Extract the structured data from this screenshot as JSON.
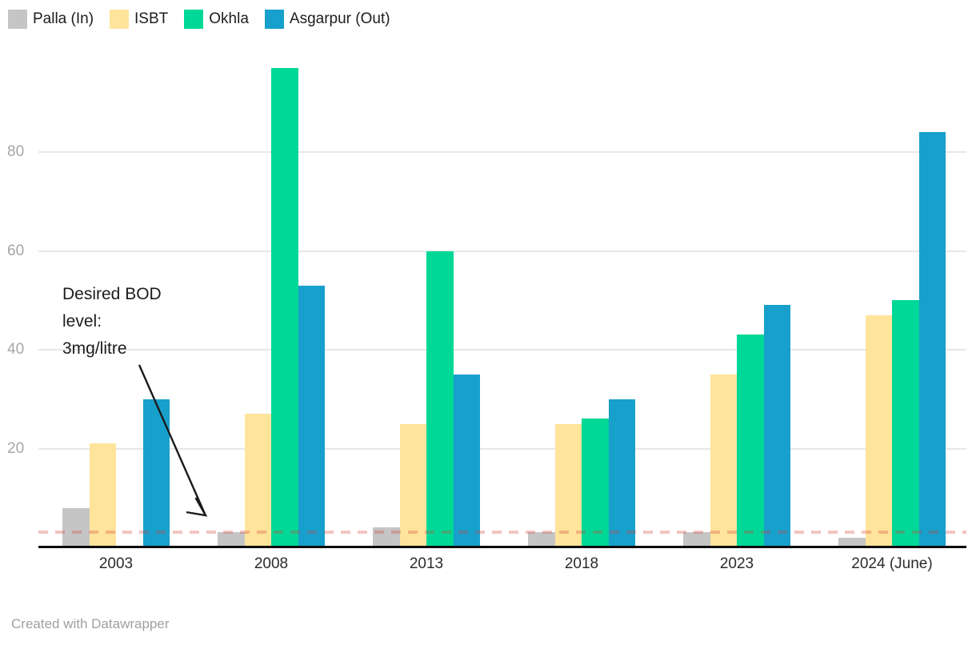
{
  "chart_data": {
    "type": "bar",
    "title": "",
    "categories": [
      "2003",
      "2008",
      "2013",
      "2018",
      "2023",
      "2024 (June)"
    ],
    "series": [
      {
        "name": "Palla (In)",
        "color": "#c5c5c5",
        "values": [
          8,
          3,
          4,
          3,
          3,
          2
        ]
      },
      {
        "name": "ISBT",
        "color": "#ffe49c",
        "values": [
          21,
          27,
          25,
          25,
          35,
          47
        ]
      },
      {
        "name": "Okhla",
        "color": "#00d897",
        "values": [
          null,
          97,
          60,
          26,
          43,
          50
        ]
      },
      {
        "name": "Asgarpur (Out)",
        "color": "#18a0cc",
        "values": [
          30,
          53,
          35,
          30,
          49,
          84
        ]
      }
    ],
    "xlabel": "",
    "ylabel": "",
    "ylim": [
      0,
      100
    ],
    "yticks": [
      20,
      40,
      60,
      80
    ],
    "grid": true,
    "legend_position": "top-left",
    "reference_line": {
      "value": 3,
      "style": "dashed",
      "color": "#d53e34",
      "label": "Desired BOD level: 3mg/litre"
    }
  },
  "annotation": {
    "text": "Desired BOD\nlevel:\n3mg/litre"
  },
  "footer": {
    "credit": "Created with Datawrapper"
  }
}
